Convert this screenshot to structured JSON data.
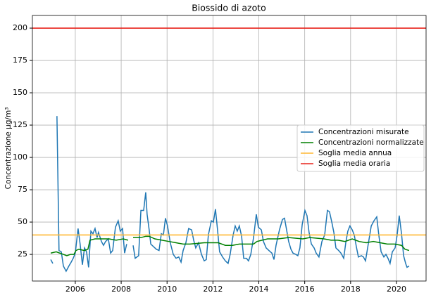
{
  "chart_data": {
    "type": "line",
    "title": "Biossido di azoto",
    "ylabel": "Concentrazione µg/m³",
    "xlim": [
      2004.13,
      2021.29
    ],
    "ylim": [
      4.4,
      209.8
    ],
    "xticks": [
      2006,
      2008,
      2010,
      2012,
      2014,
      2016,
      2018,
      2020
    ],
    "yticks": [
      25,
      50,
      75,
      100,
      125,
      150,
      175,
      200
    ],
    "grid": true,
    "legend_position": "center right",
    "series": [
      {
        "name": "Concentrazioni misurate",
        "color": "#1f77b4",
        "x": [
          2004.93,
          2005.02,
          2005.1,
          2005.2,
          2005.29,
          2005.39,
          2005.48,
          2005.6,
          2005.72,
          2005.82,
          2005.91,
          2006.0,
          2006.12,
          2006.21,
          2006.31,
          2006.4,
          2006.49,
          2006.58,
          2006.68,
          2006.77,
          2006.86,
          2006.95,
          2007.01,
          2007.14,
          2007.23,
          2007.32,
          2007.44,
          2007.54,
          2007.63,
          2007.75,
          2007.87,
          2007.96,
          2008.06,
          2008.15,
          2008.24,
          2008.38,
          2008.52,
          2008.61,
          2008.76,
          2008.86,
          2008.98,
          2009.07,
          2009.13,
          2009.22,
          2009.29,
          2009.41,
          2009.53,
          2009.65,
          2009.75,
          2009.84,
          2009.93,
          2010.02,
          2010.14,
          2010.27,
          2010.39,
          2010.51,
          2010.61,
          2010.7,
          2010.82,
          2010.94,
          2011.07,
          2011.16,
          2011.25,
          2011.37,
          2011.5,
          2011.62,
          2011.71,
          2011.8,
          2011.93,
          2012.02,
          2012.11,
          2012.2,
          2012.29,
          2012.42,
          2012.54,
          2012.66,
          2012.75,
          2012.88,
          2012.97,
          2013.06,
          2013.15,
          2013.25,
          2013.34,
          2013.46,
          2013.55,
          2013.65,
          2013.77,
          2013.89,
          2013.98,
          2014.11,
          2014.2,
          2014.32,
          2014.44,
          2014.57,
          2014.66,
          2014.75,
          2014.9,
          2015.03,
          2015.12,
          2015.21,
          2015.3,
          2015.4,
          2015.49,
          2015.61,
          2015.7,
          2015.79,
          2015.89,
          2016.01,
          2016.1,
          2016.19,
          2016.29,
          2016.41,
          2016.5,
          2016.62,
          2016.75,
          2016.87,
          2016.99,
          2017.08,
          2017.18,
          2017.27,
          2017.36,
          2017.48,
          2017.58,
          2017.7,
          2017.79,
          2017.88,
          2017.97,
          2018.07,
          2018.16,
          2018.25,
          2018.34,
          2018.47,
          2018.56,
          2018.65,
          2018.77,
          2018.9,
          2019.02,
          2019.14,
          2019.23,
          2019.33,
          2019.45,
          2019.54,
          2019.63,
          2019.72,
          2019.82,
          2019.94,
          2020.03,
          2020.12,
          2020.22,
          2020.31,
          2020.4,
          2020.46,
          2020.55
        ],
        "values": [
          21,
          18,
          null,
          132,
          28,
          27,
          16,
          12,
          16,
          19,
          22,
          26,
          45,
          33,
          17,
          30,
          27,
          15,
          43,
          41,
          45,
          38,
          42,
          35,
          32,
          35,
          37,
          26,
          28,
          46,
          51,
          43,
          45,
          26,
          33,
          null,
          32,
          22,
          24,
          59,
          59,
          73,
          56,
          44,
          33,
          31,
          29,
          28,
          41,
          40,
          53,
          47,
          34,
          25,
          22,
          23,
          19,
          28,
          34,
          45,
          44,
          36,
          30,
          34,
          25,
          20,
          21,
          40,
          51,
          50,
          60,
          44,
          27,
          23,
          20,
          18,
          25,
          40,
          47,
          43,
          47,
          39,
          22,
          22,
          20,
          25,
          38,
          56,
          46,
          44,
          35,
          30,
          28,
          26,
          21,
          32,
          44,
          52,
          53,
          44,
          35,
          29,
          26,
          25,
          24,
          30,
          48,
          59,
          55,
          42,
          33,
          30,
          26,
          23,
          35,
          40,
          59,
          58,
          50,
          42,
          30,
          28,
          26,
          22,
          34,
          43,
          47,
          44,
          40,
          31,
          23,
          24,
          23,
          20,
          33,
          47,
          51,
          54,
          40,
          27,
          23,
          25,
          22,
          18,
          27,
          30,
          40,
          55,
          41,
          24,
          18,
          15,
          16
        ]
      },
      {
        "name": "Concentrazioni normalizzate",
        "color": "#008000",
        "x": [
          2004.93,
          2005.17,
          2005.32,
          2005.48,
          2005.63,
          2005.79,
          2005.94,
          2006.03,
          2006.15,
          2006.4,
          2006.55,
          2006.64,
          2006.86,
          2007.17,
          2007.47,
          2007.78,
          2008.09,
          2008.3,
          2008.4,
          2008.52,
          2008.86,
          2009.07,
          2009.22,
          2009.47,
          2009.78,
          2010.08,
          2010.39,
          2010.7,
          2011.0,
          2011.62,
          2011.93,
          2012.23,
          2012.54,
          2012.85,
          2013.15,
          2013.46,
          2013.77,
          2013.92,
          2014.14,
          2014.38,
          2014.84,
          2015.3,
          2015.92,
          2016.22,
          2016.84,
          2017.15,
          2017.45,
          2017.76,
          2018.07,
          2018.37,
          2018.68,
          2018.99,
          2019.29,
          2019.6,
          2019.91,
          2020.22,
          2020.37,
          2020.55
        ],
        "values": [
          26,
          27,
          26,
          25,
          24,
          25,
          25,
          28,
          29,
          28,
          29,
          36,
          37,
          37,
          37,
          36,
          37,
          36,
          null,
          38,
          38,
          39,
          39,
          37,
          36,
          35,
          34,
          33,
          33,
          34,
          34,
          34,
          32,
          32,
          33,
          33,
          33,
          35,
          36,
          37,
          37,
          38,
          37,
          38,
          37,
          36,
          36,
          35,
          37,
          35,
          34,
          35,
          34,
          33,
          33,
          32,
          29,
          28
        ]
      }
    ],
    "reference_lines": [
      {
        "name": "Soglia media annua",
        "value": 40,
        "color": "#ffb732"
      },
      {
        "name": "Soglia media oraria",
        "value": 200,
        "color": "#e8231b"
      }
    ]
  }
}
